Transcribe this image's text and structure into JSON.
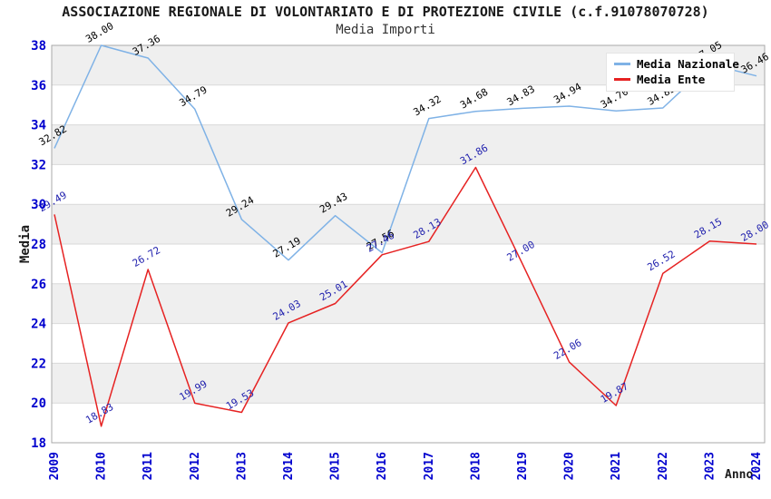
{
  "chart_data": {
    "type": "line",
    "title": "ASSOCIAZIONE REGIONALE DI VOLONTARIATO E DI PROTEZIONE CIVILE (c.f.91078070728)",
    "subtitle": "Media Importi",
    "xlabel": "Anno",
    "ylabel": "Media",
    "categories": [
      "2009",
      "2010",
      "2011",
      "2012",
      "2013",
      "2014",
      "2015",
      "2016",
      "2017",
      "2018",
      "2019",
      "2020",
      "2021",
      "2022",
      "2023",
      "2024"
    ],
    "series": [
      {
        "name": "Media Nazionale",
        "color": "#7FB2E6",
        "label_color": "#000000",
        "values": [
          32.82,
          38.0,
          37.36,
          34.79,
          29.24,
          27.19,
          29.43,
          27.56,
          34.32,
          34.68,
          34.83,
          34.94,
          34.7,
          34.85,
          37.05,
          36.46
        ]
      },
      {
        "name": "Media Ente",
        "color": "#E62222",
        "label_color": "#2222AE",
        "values": [
          29.49,
          18.83,
          26.72,
          19.99,
          19.53,
          24.03,
          25.01,
          27.46,
          28.13,
          31.86,
          27.0,
          22.06,
          19.87,
          26.52,
          28.15,
          28.0
        ]
      }
    ],
    "ylim": [
      18,
      38
    ],
    "y_ticks": [
      18,
      20,
      22,
      24,
      26,
      28,
      30,
      32,
      34,
      36,
      38
    ],
    "grid": "horizontal, alternating shaded bands every 2 units",
    "legend_position": "top-right"
  },
  "colors": {
    "axis_tick_text": "#0000CE",
    "band_fill": "#EFEFEF",
    "gridline": "#D9D9D9",
    "plot_border": "#A8A8A8",
    "background": "#FFFFFF"
  }
}
